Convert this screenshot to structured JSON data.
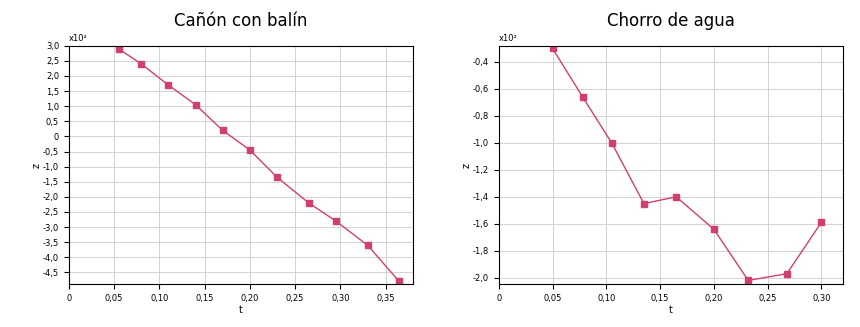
{
  "chart_data": [
    {
      "type": "line",
      "title": "Cañón con balín",
      "x_label": "t",
      "y_label": "z",
      "annotation": "x10²",
      "x": [
        0.055,
        0.08,
        0.11,
        0.14,
        0.17,
        0.2,
        0.23,
        0.265,
        0.295,
        0.33,
        0.365
      ],
      "values": [
        2.9,
        2.4,
        1.7,
        1.05,
        0.2,
        -0.45,
        -1.35,
        -2.2,
        -2.8,
        -3.6,
        -4.8
      ],
      "color": "#d0406e",
      "marker": "square",
      "line_style": "solid",
      "grid": true,
      "xlim": [
        0,
        0.38
      ],
      "ylim": [
        -4.9,
        3.0
      ],
      "xticks": [
        0,
        {
          "value": 0.05,
          "label": "0,05"
        },
        {
          "value": 0.1,
          "label": "0,10"
        },
        {
          "value": 0.15,
          "label": "0,15"
        },
        {
          "value": 0.2,
          "label": "0,20"
        },
        {
          "value": 0.25,
          "label": "0,25"
        },
        {
          "value": 0.3,
          "label": "0,30"
        },
        {
          "value": 0.35,
          "label": "0,35"
        }
      ],
      "yticks": [
        {
          "value": 3.0,
          "label": "3,0"
        },
        {
          "value": 2.5,
          "label": "2,5"
        },
        {
          "value": 2.0,
          "label": "2,0"
        },
        {
          "value": 1.5,
          "label": "1,5"
        },
        {
          "value": 1.0,
          "label": "1,0"
        },
        {
          "value": 0.5,
          "label": "0,5"
        },
        0,
        {
          "value": -0.5,
          "label": "-0,5"
        },
        {
          "value": -1.0,
          "label": "-1,0"
        },
        {
          "value": -1.5,
          "label": "-1,5"
        },
        {
          "value": -2.0,
          "label": "-2,0"
        },
        {
          "value": -2.5,
          "label": "-2,5"
        },
        {
          "value": -3.0,
          "label": "-3,0"
        },
        {
          "value": -3.5,
          "label": "-3,5"
        },
        {
          "value": -4.0,
          "label": "-4,0"
        },
        {
          "value": -4.5,
          "label": "-4,5"
        }
      ]
    },
    {
      "type": "line",
      "title": "Chorro de agua",
      "x_label": "t",
      "y_label": "z",
      "annotation": "x10²",
      "x": [
        0.05,
        0.078,
        0.105,
        0.135,
        0.165,
        0.2,
        0.232,
        0.268,
        0.3
      ],
      "values": [
        -0.3,
        -0.66,
        -1.0,
        -1.45,
        -1.4,
        -1.64,
        -2.02,
        -1.97,
        -1.59
      ],
      "color": "#d0406e",
      "marker": "square",
      "line_style": "solid",
      "grid": true,
      "xlim": [
        0,
        0.32
      ],
      "ylim": [
        -2.05,
        -0.28
      ],
      "xticks": [
        0,
        {
          "value": 0.05,
          "label": "0,05"
        },
        {
          "value": 0.1,
          "label": "0,10"
        },
        {
          "value": 0.15,
          "label": "0,15"
        },
        {
          "value": 0.2,
          "label": "0,20"
        },
        {
          "value": 0.25,
          "label": "0,25"
        },
        {
          "value": 0.3,
          "label": "0,30"
        }
      ],
      "yticks": [
        {
          "value": -0.4,
          "label": "-0,4"
        },
        {
          "value": -0.6,
          "label": "-0,6"
        },
        {
          "value": -0.8,
          "label": "-0,8"
        },
        {
          "value": -1.0,
          "label": "-1,0"
        },
        {
          "value": -1.2,
          "label": "-1,2"
        },
        {
          "value": -1.4,
          "label": "-1,4"
        },
        {
          "value": -1.6,
          "label": "-1,6"
        },
        {
          "value": -1.8,
          "label": "-1,8"
        },
        {
          "value": -2.0,
          "label": "-2,0"
        }
      ]
    }
  ]
}
